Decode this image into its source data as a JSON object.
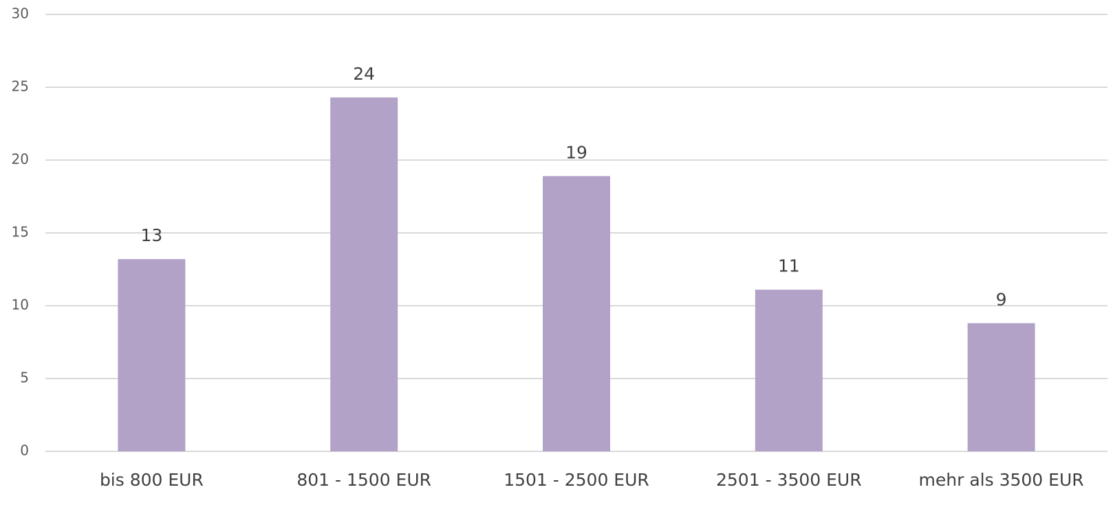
{
  "chart_data": {
    "type": "bar",
    "categories": [
      "bis 800 EUR",
      "801 - 1500 EUR",
      "1501 - 2500 EUR",
      "2501 - 3500 EUR",
      "mehr als 3500 EUR"
    ],
    "values": [
      13.2,
      24.3,
      18.9,
      11.1,
      8.8
    ],
    "value_labels": [
      "13",
      "24",
      "19",
      "11",
      "9"
    ],
    "color": "#b3a2c7",
    "ylim": [
      0,
      30
    ],
    "yticks": [
      0,
      5,
      10,
      15,
      20,
      25,
      30
    ],
    "grid": true
  }
}
